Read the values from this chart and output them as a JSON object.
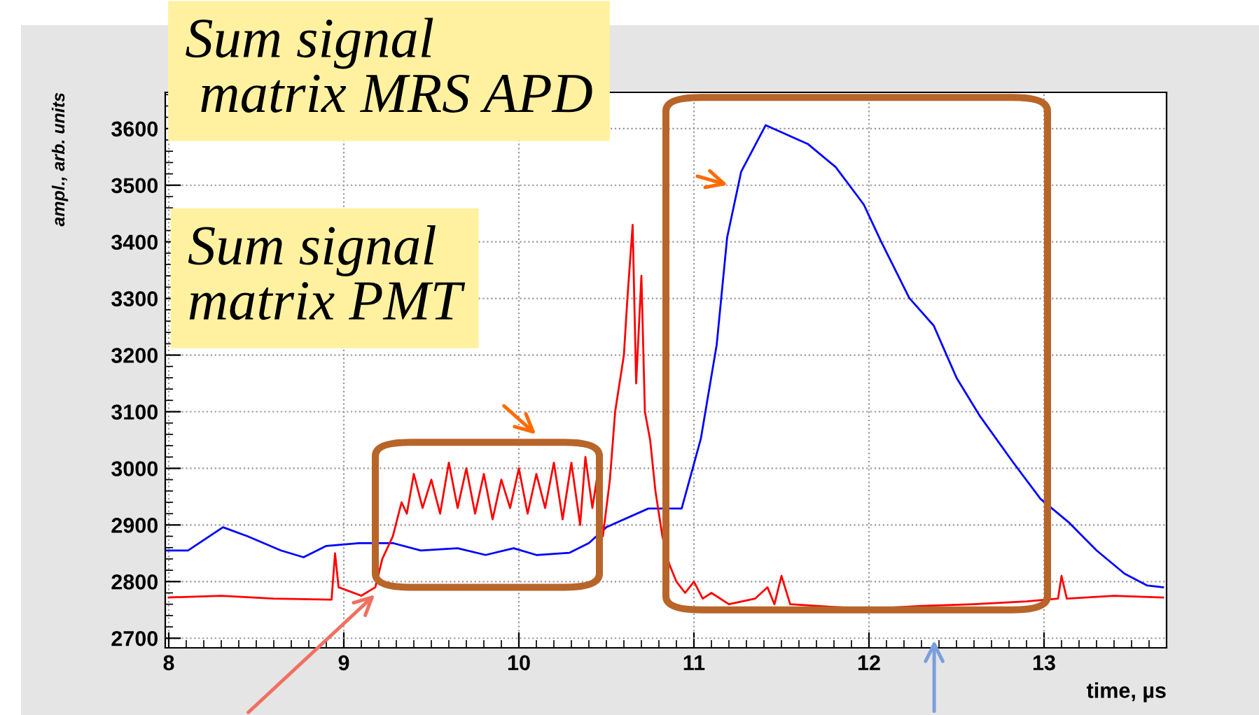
{
  "chart_data": {
    "type": "line",
    "xlabel": "time, µs",
    "ylabel": "ampl., arb. units",
    "xlim": [
      7.98,
      13.7
    ],
    "ylim": [
      2683,
      3664
    ],
    "xticks": [
      8,
      9,
      10,
      11,
      12,
      13
    ],
    "yticks": [
      2700,
      2800,
      2900,
      3000,
      3100,
      3200,
      3300,
      3400,
      3500,
      3600
    ],
    "grid": true,
    "series": [
      {
        "color": "#0000ff",
        "x": [
          7.98,
          8.11,
          8.31,
          8.45,
          8.64,
          8.77,
          8.9,
          9.09,
          9.28,
          9.44,
          9.65,
          9.81,
          9.97,
          10.1,
          10.29,
          10.4,
          10.5,
          10.74,
          10.9,
          10.93,
          11.04,
          11.13,
          11.19,
          11.27,
          11.41,
          11.65,
          11.81,
          11.97,
          12.07,
          12.23,
          12.37,
          12.5,
          12.63,
          12.82,
          12.98,
          13.14,
          13.3,
          13.46,
          13.59,
          13.68
        ],
        "values": [
          2855,
          2855,
          2896,
          2880,
          2855,
          2843,
          2863,
          2868,
          2868,
          2855,
          2859,
          2847,
          2859,
          2847,
          2851,
          2868,
          2896,
          2929,
          2929,
          2929,
          3053,
          3218,
          3408,
          3524,
          3606,
          3573,
          3532,
          3466,
          3400,
          3301,
          3252,
          3160,
          3094,
          3012,
          2946,
          2905,
          2855,
          2814,
          2793,
          2790
        ]
      },
      {
        "color": "#ff0000",
        "x": [
          8.0,
          8.3,
          8.6,
          8.93,
          8.95,
          8.97,
          9.1,
          9.18,
          9.22,
          9.28,
          9.33,
          9.36,
          9.4,
          9.45,
          9.5,
          9.55,
          9.6,
          9.65,
          9.7,
          9.75,
          9.8,
          9.85,
          9.9,
          9.95,
          10.0,
          10.05,
          10.1,
          10.15,
          10.2,
          10.25,
          10.3,
          10.35,
          10.38,
          10.42,
          10.45,
          10.48,
          10.52,
          10.55,
          10.6,
          10.62,
          10.65,
          10.67,
          10.7,
          10.72,
          10.75,
          10.78,
          10.82,
          10.86,
          10.9,
          10.95,
          11.0,
          11.05,
          11.1,
          11.2,
          11.35,
          11.42,
          11.46,
          11.5,
          11.55,
          11.8,
          12.0,
          12.3,
          12.6,
          12.9,
          13.08,
          13.1,
          13.13,
          13.4,
          13.68
        ],
        "values": [
          2772,
          2775,
          2770,
          2768,
          2850,
          2790,
          2775,
          2790,
          2840,
          2880,
          2940,
          2920,
          2990,
          2930,
          2980,
          2920,
          3010,
          2930,
          3000,
          2920,
          2990,
          2910,
          2980,
          2930,
          3000,
          2920,
          2990,
          2930,
          3010,
          2910,
          3010,
          2900,
          3020,
          2930,
          2990,
          2880,
          2980,
          3100,
          3200,
          3300,
          3430,
          3150,
          3340,
          3100,
          3050,
          2960,
          2880,
          2830,
          2800,
          2780,
          2800,
          2770,
          2780,
          2760,
          2770,
          2790,
          2760,
          2810,
          2760,
          2755,
          2752,
          2757,
          2760,
          2765,
          2770,
          2810,
          2770,
          2775,
          2772
        ]
      }
    ],
    "annotations": [
      "Sum signal\n matrix MRS APD",
      "Sum signal\nmatrix PMT"
    ]
  }
}
